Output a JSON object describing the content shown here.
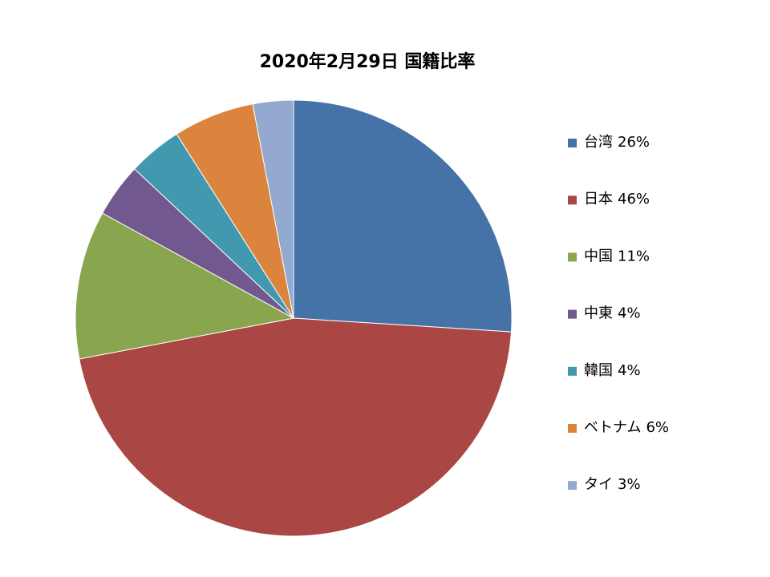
{
  "chart_data": {
    "type": "pie",
    "title": "2020年2月29日 国籍比率",
    "categories": [
      "台湾",
      "日本",
      "中国",
      "中東",
      "韓国",
      "ベトナム",
      "タイ"
    ],
    "values": [
      26,
      46,
      11,
      4,
      4,
      6,
      3
    ],
    "value_labels": [
      "26%",
      "46%",
      "11%",
      "4%",
      "4%",
      "6%",
      "3%"
    ],
    "colors": [
      "#4572a7",
      "#aa4643",
      "#89a54e",
      "#71588f",
      "#4198af",
      "#db843d",
      "#93a9cf"
    ],
    "legend": "right"
  }
}
